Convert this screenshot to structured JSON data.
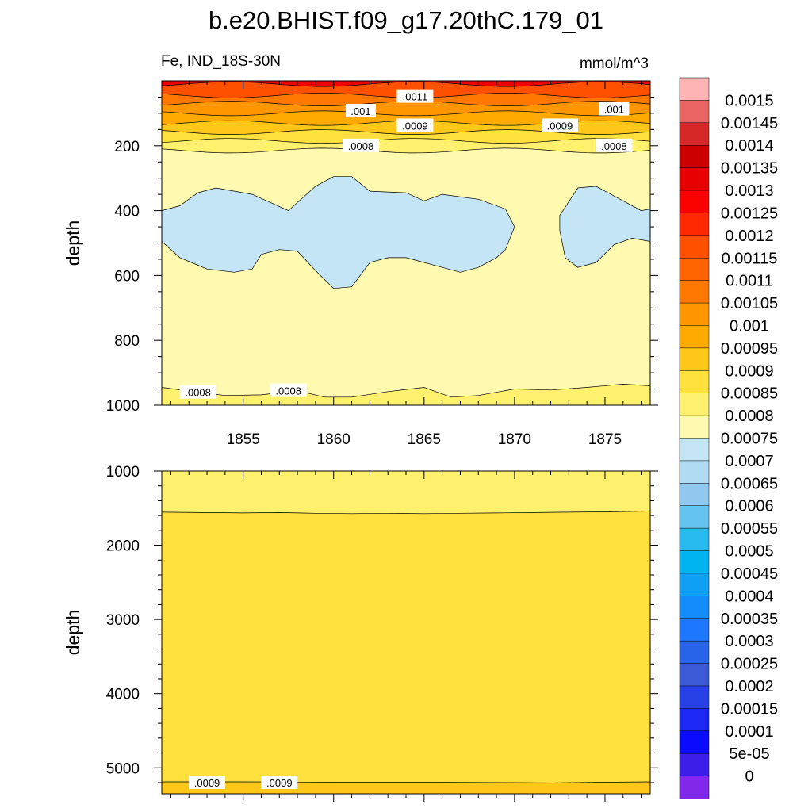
{
  "title": "b.e20.BHIST.f09_g17.20thC.179_01",
  "left_label": "Fe, IND_18S-30N",
  "right_label": "mmol/m^3",
  "chart_data": [
    {
      "type": "heatmap",
      "panel": "upper",
      "ylabel": "depth",
      "xlim": [
        1850.5,
        1877.5
      ],
      "ylim": [
        1000,
        0
      ],
      "x_ticks": [
        1855,
        1860,
        1865,
        1870,
        1875
      ],
      "y_ticks": [
        200,
        400,
        600,
        800,
        1000
      ],
      "contour_labels": [
        {
          "text": ".0011",
          "x": 1864.5,
          "y": 48
        },
        {
          "text": ".001",
          "x": 1861.5,
          "y": 93
        },
        {
          "text": ".001",
          "x": 1875.5,
          "y": 87
        },
        {
          "text": ".0009",
          "x": 1864.5,
          "y": 138
        },
        {
          "text": ".0009",
          "x": 1872.5,
          "y": 138
        },
        {
          "text": ".0008",
          "x": 1861.5,
          "y": 200
        },
        {
          "text": ".0008",
          "x": 1875.5,
          "y": 200
        },
        {
          "text": ".0008",
          "x": 1852.5,
          "y": 960
        },
        {
          "text": ".0008",
          "x": 1857.5,
          "y": 955
        }
      ],
      "regions": [
        {
          "level": "0.00075-0.0008",
          "color": "#fffaaf"
        },
        {
          "level": "0.0007-0.00075",
          "color": "#c3e5f5"
        },
        {
          "level": "0.0008-0.00085",
          "color": "#fff06e"
        },
        {
          "level": "0.00085-0.0009",
          "color": "#ffe03c"
        },
        {
          "level": "0.0009-0.00095",
          "color": "#ffc819"
        },
        {
          "level": "0.00095-0.001",
          "color": "#ffaa00"
        },
        {
          "level": "0.001-0.00105",
          "color": "#ff9600"
        },
        {
          "level": "0.00105-0.0011",
          "color": "#ff7800"
        },
        {
          "level": "0.0011-0.00115",
          "color": "#ff5000"
        },
        {
          "level": "0.00125-0.0013",
          "color": "#f00000"
        }
      ]
    },
    {
      "type": "heatmap",
      "panel": "lower",
      "ylabel": "depth",
      "xlim": [
        1850.5,
        1877.5
      ],
      "ylim": [
        5350,
        1000
      ],
      "y_ticks": [
        1000,
        2000,
        3000,
        4000,
        5000
      ],
      "contour_labels": [
        {
          "text": ".0009",
          "x": 1853,
          "y": 5200
        },
        {
          "text": ".0009",
          "x": 1857,
          "y": 5200
        }
      ],
      "regions": [
        {
          "level": "0.0008-0.00085",
          "color": "#fff06e"
        },
        {
          "level": "0.00085-0.0009",
          "color": "#ffe03c"
        },
        {
          "level": "0.0009-0.00095",
          "color": "#ffc819"
        }
      ]
    },
    {
      "type": "colorbar",
      "levels": [
        "0.0015",
        "0.00145",
        "0.0014",
        "0.00135",
        "0.0013",
        "0.00125",
        "0.0012",
        "0.00115",
        "0.0011",
        "0.00105",
        "0.001",
        "0.00095",
        "0.0009",
        "0.00085",
        "0.0008",
        "0.00075",
        "0.0007",
        "0.00065",
        "0.0006",
        "0.00055",
        "0.0005",
        "0.00045",
        "0.0004",
        "0.00035",
        "0.0003",
        "0.00025",
        "0.0002",
        "0.00015",
        "0.0001",
        "5e-05",
        "0"
      ],
      "colors": [
        "#ffb4b4",
        "#eb6464",
        "#d72828",
        "#cd0000",
        "#e60000",
        "#fa0000",
        "#ff2800",
        "#ff5000",
        "#ff6400",
        "#ff7800",
        "#ff9600",
        "#ffaa00",
        "#ffc819",
        "#ffe03c",
        "#fff06e",
        "#fffaaf",
        "#c3e5f5",
        "#afdcf3",
        "#91c8ef",
        "#64c3ef",
        "#28bbf0",
        "#00b4f0",
        "#0fa0f5",
        "#148cfa",
        "#1e78ff",
        "#2864ea",
        "#3c5ad7",
        "#2841e6",
        "#1e28f5",
        "#0a0aff",
        "#3c1eeb",
        "#8228ea"
      ]
    }
  ]
}
